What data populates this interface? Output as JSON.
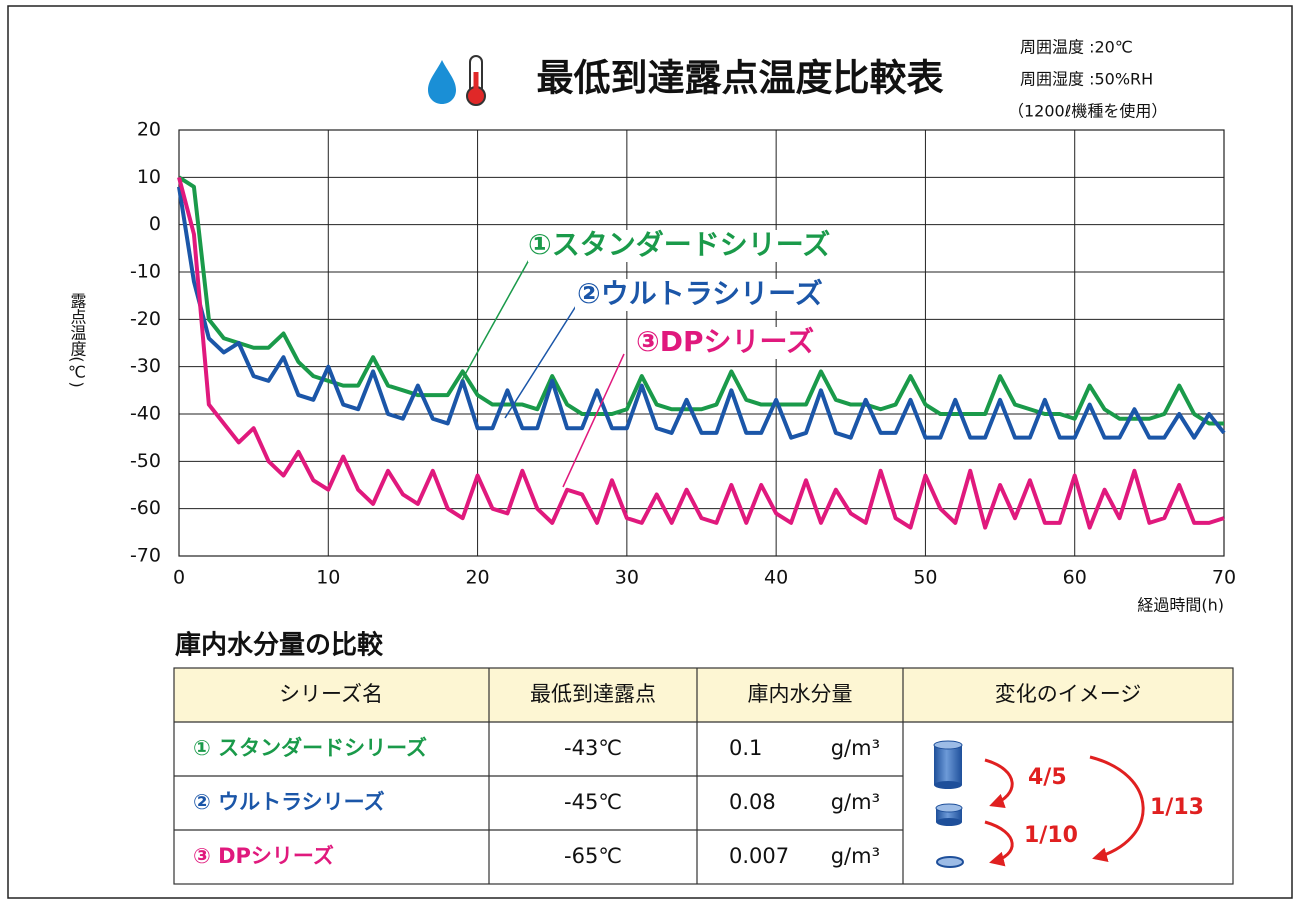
{
  "chart_data": {
    "type": "line",
    "title": "最低到達露点温度比較表",
    "notes": [
      "周囲温度 :20℃",
      "周囲湿度 :50%RH",
      "（1200ℓ機種を使用）"
    ],
    "y_label": "露点温度(℃)",
    "x_label": "経過時間(h)",
    "x": [
      0,
      1,
      2,
      3,
      4,
      5,
      6,
      7,
      8,
      9,
      10,
      11,
      12,
      13,
      14,
      15,
      16,
      17,
      18,
      19,
      20,
      21,
      22,
      23,
      24,
      25,
      26,
      27,
      28,
      29,
      30,
      31,
      32,
      33,
      34,
      35,
      36,
      37,
      38,
      39,
      40,
      41,
      42,
      43,
      44,
      45,
      46,
      47,
      48,
      49,
      50,
      51,
      52,
      53,
      54,
      55,
      56,
      57,
      58,
      59,
      60,
      61,
      62,
      63,
      64,
      65,
      66,
      67,
      68,
      69,
      70
    ],
    "series": [
      {
        "name": "①スタンダードシリーズ",
        "color": "#1a9a4a",
        "values": [
          10,
          8,
          -20,
          -24,
          -25,
          -26,
          -26,
          -23,
          -29,
          -32,
          -33,
          -34,
          -34,
          -28,
          -34,
          -35,
          -36,
          -36,
          -36,
          -31,
          -36,
          -38,
          -38,
          -38,
          -39,
          -32,
          -38,
          -40,
          -40,
          -40,
          -39,
          -32,
          -38,
          -39,
          -39,
          -39,
          -38,
          -31,
          -37,
          -38,
          -38,
          -38,
          -38,
          -31,
          -37,
          -38,
          -38,
          -39,
          -38,
          -32,
          -38,
          -40,
          -40,
          -40,
          -40,
          -32,
          -38,
          -39,
          -40,
          -40,
          -41,
          -34,
          -39,
          -41,
          -41,
          -41,
          -40,
          -34,
          -40,
          -42,
          -42
        ]
      },
      {
        "name": "②ウルトラシリーズ",
        "color": "#1b56a8",
        "values": [
          8,
          -12,
          -24,
          -27,
          -25,
          -32,
          -33,
          -28,
          -36,
          -37,
          -30,
          -38,
          -39,
          -31,
          -40,
          -41,
          -34,
          -41,
          -42,
          -33,
          -43,
          -43,
          -35,
          -43,
          -43,
          -33,
          -43,
          -43,
          -35,
          -43,
          -43,
          -34,
          -43,
          -44,
          -37,
          -44,
          -44,
          -35,
          -44,
          -44,
          -37,
          -45,
          -44,
          -35,
          -44,
          -45,
          -37,
          -44,
          -44,
          -37,
          -45,
          -45,
          -37,
          -45,
          -45,
          -37,
          -45,
          -45,
          -37,
          -45,
          -45,
          -38,
          -45,
          -45,
          -39,
          -45,
          -45,
          -40,
          -45,
          -40,
          -44
        ]
      },
      {
        "name": "③DPシリーズ",
        "color": "#e0197d",
        "values": [
          10,
          -2,
          -38,
          -42,
          -46,
          -43,
          -50,
          -53,
          -48,
          -54,
          -56,
          -49,
          -56,
          -59,
          -52,
          -57,
          -59,
          -52,
          -60,
          -62,
          -53,
          -60,
          -61,
          -52,
          -60,
          -63,
          -56,
          -57,
          -63,
          -54,
          -62,
          -63,
          -57,
          -63,
          -56,
          -62,
          -63,
          -55,
          -63,
          -55,
          -61,
          -63,
          -54,
          -63,
          -56,
          -61,
          -63,
          -52,
          -62,
          -64,
          -53,
          -60,
          -63,
          -52,
          -64,
          -55,
          -62,
          -54,
          -63,
          -63,
          -53,
          -64,
          -56,
          -62,
          -52,
          -63,
          -62,
          -55,
          -63,
          -63,
          -62
        ]
      }
    ],
    "xlim": [
      0,
      70
    ],
    "xticks": [
      0,
      10,
      20,
      30,
      40,
      50,
      60,
      70
    ],
    "ylim": [
      -70,
      20
    ],
    "yticks": [
      -70,
      -60,
      -50,
      -40,
      -30,
      -20,
      -10,
      0,
      10,
      20
    ],
    "grid": true
  },
  "table": {
    "title": "庫内水分量の比較",
    "header": [
      "シリーズ名",
      "最低到達露点",
      "庫内水分量",
      "変化のイメージ"
    ],
    "rows": [
      {
        "series": "① スタンダードシリーズ",
        "color": "#1a9a4a",
        "dew_point": "-43℃",
        "moisture": "0.1",
        "unit": "g/m³"
      },
      {
        "series": "② ウルトラシリーズ",
        "color": "#1b56a8",
        "dew_point": "-45℃",
        "moisture": "0.08",
        "unit": "g/m³"
      },
      {
        "series": "③ DPシリーズ",
        "color": "#e0197d",
        "dew_point": "-65℃",
        "moisture": "0.007",
        "unit": "g/m³"
      }
    ],
    "ratios": [
      "4/5",
      "1/10",
      "1/13"
    ]
  }
}
